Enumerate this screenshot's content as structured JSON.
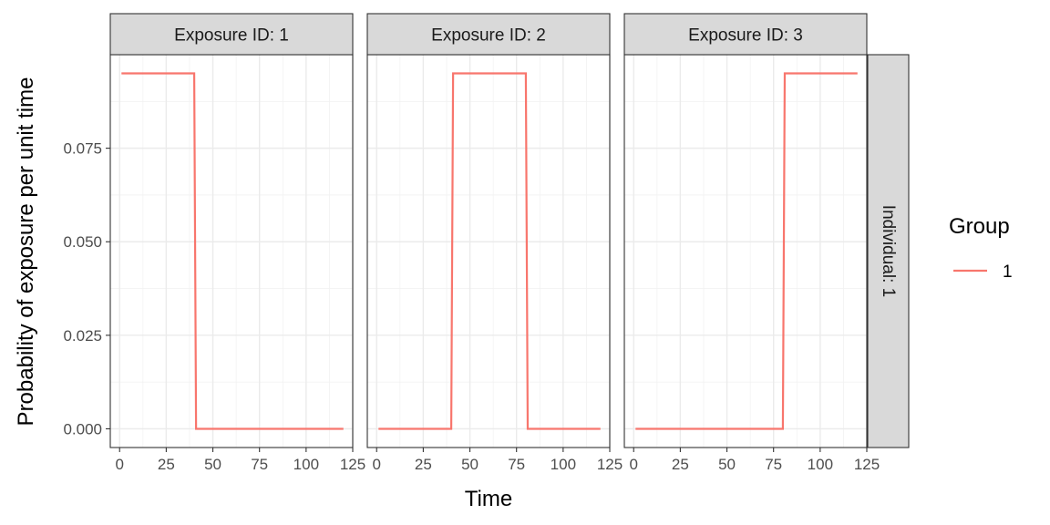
{
  "chart_data": {
    "type": "line",
    "line_shape": "step",
    "xlabel": "Time",
    "ylabel": "Probability of exposure per unit time",
    "xlim": [
      -5,
      125
    ],
    "ylim": [
      -0.005,
      0.1
    ],
    "x_ticks": [
      0,
      25,
      50,
      75,
      100,
      125
    ],
    "x_tick_labels": [
      "0",
      "25",
      "50",
      "75",
      "100",
      "125"
    ],
    "y_ticks": [
      0,
      0.025,
      0.05,
      0.075
    ],
    "y_tick_labels": [
      "0.000",
      "0.025",
      "0.050",
      "0.075"
    ],
    "grid": true,
    "theme": "bw",
    "row_strip": "Individual: 1",
    "panels": [
      {
        "strip": "Exposure ID: 1",
        "series": [
          {
            "name": "1",
            "color": "#F8766D",
            "x": [
              1,
              40,
              41,
              120
            ],
            "y": [
              0.095,
              0.095,
              0,
              0
            ]
          }
        ]
      },
      {
        "strip": "Exposure ID: 2",
        "series": [
          {
            "name": "1",
            "color": "#F8766D",
            "x": [
              1,
              40,
              41,
              80,
              81,
              120
            ],
            "y": [
              0,
              0,
              0.095,
              0.095,
              0,
              0
            ]
          }
        ]
      },
      {
        "strip": "Exposure ID: 3",
        "series": [
          {
            "name": "1",
            "color": "#F8766D",
            "x": [
              1,
              80,
              81,
              120
            ],
            "y": [
              0,
              0,
              0.095,
              0.095
            ]
          }
        ]
      }
    ],
    "legend": {
      "title": "Group",
      "placement": "right",
      "entries": [
        {
          "label": "1",
          "color": "#F8766D"
        }
      ]
    }
  }
}
